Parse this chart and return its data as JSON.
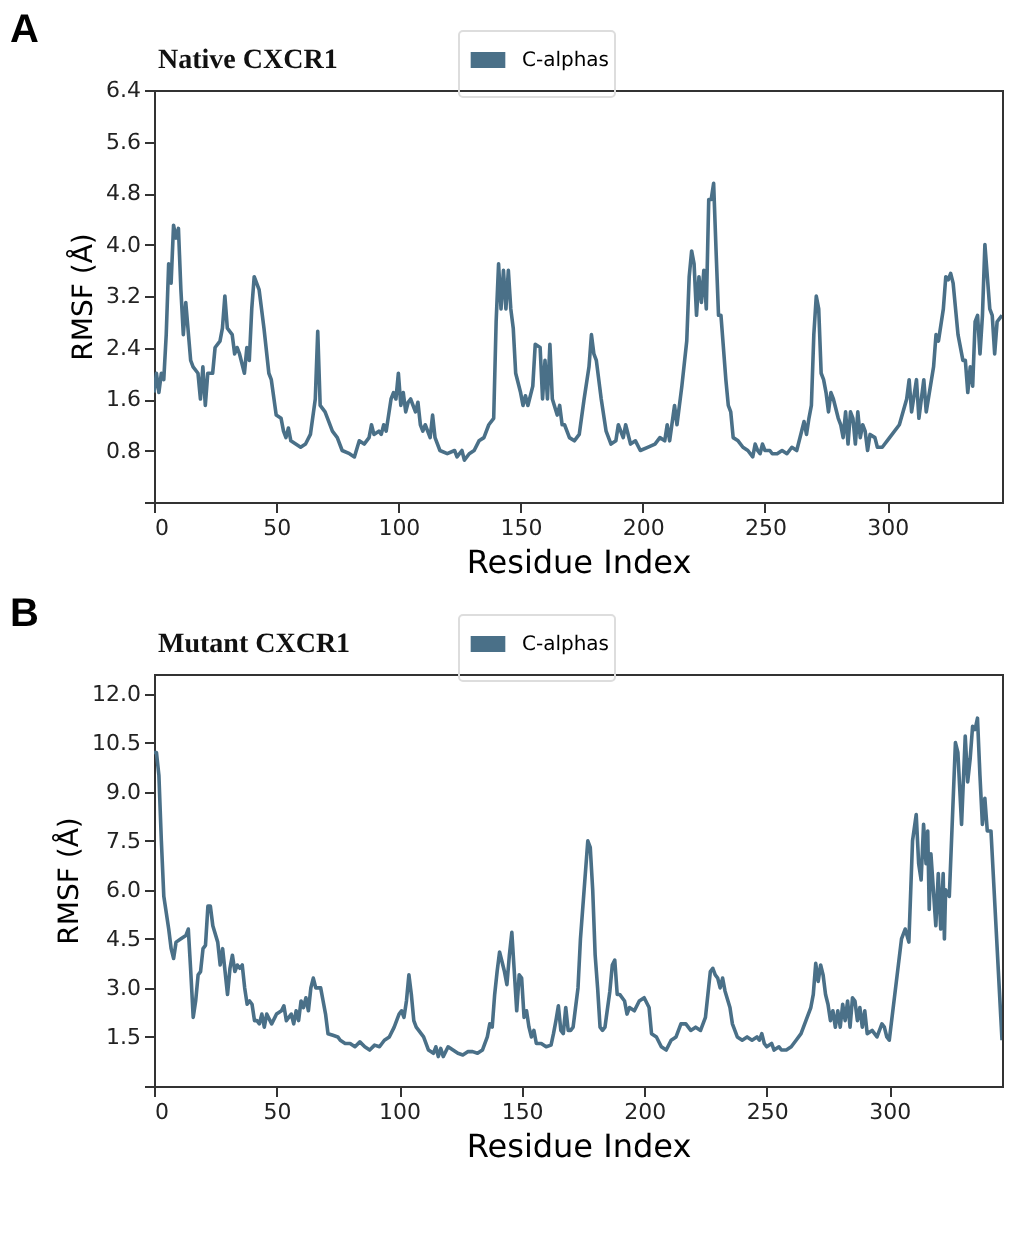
{
  "chart_data": [
    {
      "type": "line",
      "title": "Native CXCR1",
      "xlabel": "Residue Index",
      "ylabel": "RMSF (Å)",
      "annotations": [
        "A"
      ],
      "legend": "top",
      "marker": "none",
      "line_style": "solid",
      "xlim": [
        0,
        347
      ],
      "xticks": [
        0,
        50,
        100,
        150,
        200,
        250,
        300
      ],
      "ylim": [
        0,
        6.4
      ],
      "yticks": [
        {
          "value": 0,
          "label": null
        },
        0.8,
        1.6,
        2.4,
        3.2,
        {
          "value": 4,
          "label": "4.0"
        },
        4.8,
        5.6,
        6.4
      ],
      "series": [
        {
          "name": "C-alphas",
          "color": "#4a7088",
          "x": [
            0,
            1,
            2,
            3,
            4,
            5,
            6,
            7,
            8,
            9,
            10,
            11,
            12,
            13,
            15,
            16,
            18,
            19,
            20,
            21,
            22,
            24,
            25,
            27,
            28,
            29,
            30,
            32,
            33,
            34,
            35,
            37,
            38,
            39,
            40,
            41,
            43,
            45,
            47,
            48,
            50,
            52,
            53,
            54,
            55,
            56,
            58,
            60,
            62,
            64,
            66,
            67,
            68,
            70,
            73,
            75,
            77,
            80,
            82,
            84,
            86,
            88,
            89,
            90,
            92,
            93,
            94,
            95,
            97,
            98,
            99,
            100,
            101,
            102,
            103,
            104,
            105,
            107,
            108,
            109,
            110,
            111,
            113,
            114,
            115,
            117,
            120,
            123,
            124,
            126,
            127,
            129,
            131,
            133,
            135,
            137,
            139,
            140,
            141,
            142,
            143,
            144,
            145,
            146,
            147,
            148,
            150,
            151,
            152,
            153,
            155,
            156,
            158,
            159,
            160,
            161,
            162,
            163,
            165,
            166,
            167,
            168,
            170,
            172,
            174,
            176,
            178,
            179,
            180,
            181,
            183,
            185,
            187,
            189,
            190,
            192,
            193,
            195,
            197,
            199,
            202,
            205,
            207,
            209,
            210,
            211,
            213,
            214,
            216,
            218,
            219,
            220,
            221,
            222,
            223,
            224,
            225,
            226,
            227,
            228,
            229,
            230,
            231,
            232,
            234,
            235,
            236,
            237,
            239,
            241,
            243,
            245,
            246,
            247,
            248,
            249,
            250,
            252,
            253,
            255,
            257,
            259,
            261,
            263,
            265,
            266,
            267,
            268,
            269,
            270,
            271,
            272,
            273,
            274,
            275,
            276,
            277,
            278,
            280,
            281,
            282,
            283,
            284,
            285,
            286,
            287,
            288,
            289,
            290,
            291,
            292,
            293,
            295,
            296,
            298,
            301,
            305,
            308,
            309,
            310,
            312,
            313,
            315,
            316,
            319,
            320,
            321,
            323,
            324,
            325,
            326,
            327,
            329,
            331,
            332,
            333,
            334,
            335,
            336,
            337,
            338,
            339,
            340,
            342,
            343,
            344,
            345,
            347
          ],
          "values": [
            1.7,
            2.0,
            1.7,
            2.0,
            1.9,
            2.6,
            3.7,
            3.4,
            4.3,
            4.1,
            4.25,
            3.3,
            2.6,
            3.1,
            2.2,
            2.1,
            2.0,
            1.6,
            2.1,
            1.5,
            2.0,
            2.0,
            2.4,
            2.5,
            2.7,
            3.2,
            2.7,
            2.6,
            2.3,
            2.4,
            2.3,
            2.0,
            2.4,
            2.2,
            3.0,
            3.5,
            3.3,
            2.7,
            2.0,
            1.9,
            1.35,
            1.3,
            1.1,
            1.0,
            1.15,
            0.95,
            0.9,
            0.85,
            0.9,
            1.05,
            1.6,
            2.65,
            1.5,
            1.4,
            1.1,
            1.0,
            0.8,
            0.75,
            0.7,
            0.95,
            0.9,
            1.0,
            1.2,
            1.05,
            1.1,
            1.05,
            1.2,
            1.1,
            1.6,
            1.7,
            1.6,
            2.0,
            1.5,
            1.7,
            1.4,
            1.55,
            1.6,
            1.4,
            1.55,
            1.2,
            1.1,
            1.2,
            1.0,
            1.35,
            1.0,
            0.8,
            0.75,
            0.8,
            0.7,
            0.8,
            0.65,
            0.75,
            0.8,
            0.95,
            1.0,
            1.2,
            1.3,
            2.8,
            3.7,
            3.0,
            3.6,
            3.0,
            3.6,
            3.0,
            2.7,
            2.0,
            1.7,
            1.5,
            1.65,
            1.5,
            1.8,
            2.45,
            2.4,
            1.6,
            2.2,
            1.6,
            2.45,
            1.6,
            1.35,
            1.5,
            1.2,
            1.2,
            1.0,
            0.95,
            1.05,
            1.6,
            2.1,
            2.6,
            2.3,
            2.2,
            1.6,
            1.1,
            0.9,
            0.95,
            1.2,
            1.0,
            1.2,
            0.9,
            0.95,
            0.8,
            0.85,
            0.9,
            1.0,
            0.95,
            1.2,
            0.95,
            1.5,
            1.2,
            1.8,
            2.5,
            3.5,
            3.9,
            3.7,
            2.9,
            3.5,
            3.1,
            3.6,
            3.0,
            4.7,
            4.7,
            4.95,
            3.9,
            2.9,
            2.9,
            1.9,
            1.5,
            1.4,
            1.0,
            0.95,
            0.85,
            0.8,
            0.7,
            0.9,
            0.8,
            0.75,
            0.9,
            0.8,
            0.8,
            0.75,
            0.75,
            0.8,
            0.75,
            0.85,
            0.8,
            1.1,
            1.25,
            1.05,
            1.3,
            1.5,
            2.6,
            3.2,
            3.0,
            2.0,
            1.9,
            1.7,
            1.4,
            1.7,
            1.6,
            1.3,
            1.2,
            1.0,
            1.4,
            0.9,
            1.4,
            1.3,
            0.9,
            1.4,
            1.0,
            1.2,
            1.1,
            0.8,
            1.05,
            1.0,
            0.85,
            0.85,
            1.0,
            1.2,
            1.6,
            1.9,
            1.4,
            1.9,
            1.3,
            1.9,
            1.4,
            2.1,
            2.6,
            2.5,
            3.0,
            3.5,
            3.45,
            3.55,
            3.4,
            2.6,
            2.2,
            2.2,
            1.7,
            2.1,
            1.8,
            2.8,
            2.9,
            2.3,
            2.9,
            4.0,
            3.0,
            2.9,
            2.3,
            2.8,
            2.9
          ]
        }
      ]
    },
    {
      "type": "line",
      "title": "Mutant  CXCR1",
      "xlabel": "Residue Index",
      "ylabel": "RMSF (Å)",
      "annotations": [
        "B"
      ],
      "legend": "top",
      "marker": "none",
      "line_style": "solid",
      "xlim": [
        0,
        346
      ],
      "xticks": [
        0,
        50,
        100,
        150,
        200,
        250,
        300
      ],
      "ylim": [
        0,
        12.6
      ],
      "yticks": [
        {
          "value": 0,
          "label": null
        },
        1.5,
        {
          "value": 3,
          "label": "3.0"
        },
        4.5,
        {
          "value": 6,
          "label": "6.0"
        },
        7.5,
        {
          "value": 9,
          "label": "9.0"
        },
        10.5,
        {
          "value": 12,
          "label": "12.0"
        }
      ],
      "series": [
        {
          "name": "C-alphas",
          "color": "#4a7088",
          "x": [
            0,
            1,
            2,
            3,
            4,
            6,
            7,
            8,
            9,
            11,
            13,
            14,
            15,
            16,
            17,
            18,
            19,
            20,
            21,
            22,
            23,
            24,
            26,
            27,
            28,
            29,
            30,
            31,
            32,
            33,
            34,
            35,
            36,
            37,
            38,
            39,
            40,
            41,
            42,
            43,
            44,
            45,
            46,
            48,
            50,
            52,
            53,
            54,
            56,
            57,
            58,
            59,
            60,
            61,
            62,
            63,
            64,
            65,
            66,
            68,
            69,
            70,
            71,
            73,
            75,
            76,
            78,
            80,
            82,
            84,
            86,
            88,
            90,
            92,
            94,
            96,
            98,
            100,
            101,
            102,
            103,
            104,
            105,
            106,
            107,
            108,
            110,
            112,
            114,
            115,
            116,
            117,
            118,
            120,
            122,
            124,
            126,
            128,
            130,
            132,
            134,
            136,
            137,
            138,
            139,
            140,
            141,
            142,
            143,
            144,
            145,
            146,
            147,
            148,
            149,
            150,
            151,
            152,
            153,
            154,
            155,
            156,
            158,
            160,
            162,
            163,
            164,
            165,
            166,
            167,
            168,
            169,
            170,
            171,
            173,
            174,
            176,
            177,
            178,
            179,
            180,
            181,
            182,
            183,
            184,
            186,
            187,
            188,
            189,
            190,
            192,
            193,
            194,
            196,
            198,
            200,
            202,
            203,
            205,
            207,
            209,
            211,
            213,
            215,
            217,
            219,
            221,
            223,
            225,
            227,
            228,
            229,
            230,
            231,
            232,
            233,
            235,
            236,
            238,
            240,
            242,
            244,
            246,
            247,
            248,
            249,
            250,
            252,
            253,
            255,
            256,
            258,
            260,
            262,
            264,
            266,
            268,
            269,
            270,
            271,
            272,
            273,
            274,
            275,
            276,
            277,
            278,
            279,
            280,
            281,
            282,
            283,
            284,
            285,
            286,
            287,
            288,
            289,
            290,
            291,
            293,
            295,
            297,
            298,
            299,
            300,
            305,
            306.5,
            308,
            309.5,
            311,
            312,
            313,
            314,
            315,
            315.7,
            316.3,
            317,
            319,
            320,
            321,
            322,
            322.5,
            323,
            324.5,
            327,
            328,
            329.5,
            331,
            332,
            333,
            334,
            335,
            336,
            337,
            338,
            339,
            340,
            341.5,
            346
          ],
          "values": [
            10.2,
            10.2,
            9.5,
            7.5,
            5.8,
            4.8,
            4.2,
            3.9,
            4.4,
            4.5,
            4.6,
            4.8,
            3.5,
            2.1,
            2.6,
            3.4,
            3.5,
            4.2,
            4.3,
            5.5,
            5.5,
            4.9,
            4.4,
            3.7,
            4.2,
            3.5,
            2.8,
            3.6,
            4.0,
            3.5,
            3.7,
            3.6,
            3.7,
            3.0,
            2.5,
            2.6,
            2.5,
            2.0,
            2.0,
            1.9,
            2.2,
            1.8,
            2.2,
            1.9,
            2.2,
            2.3,
            2.45,
            2.0,
            2.2,
            1.9,
            2.3,
            2.0,
            2.6,
            2.4,
            2.7,
            2.3,
            3.0,
            3.3,
            3.0,
            3.0,
            2.6,
            2.2,
            1.6,
            1.55,
            1.5,
            1.4,
            1.3,
            1.3,
            1.2,
            1.35,
            1.2,
            1.1,
            1.25,
            1.2,
            1.4,
            1.5,
            1.8,
            2.2,
            2.3,
            2.1,
            2.6,
            3.4,
            2.8,
            2.0,
            1.8,
            1.7,
            1.5,
            1.1,
            1.0,
            1.2,
            0.9,
            1.15,
            0.9,
            1.2,
            1.1,
            1.0,
            0.95,
            1.05,
            1.05,
            1.0,
            1.1,
            1.5,
            1.9,
            1.8,
            2.8,
            3.5,
            4.1,
            3.8,
            3.5,
            3.1,
            4.0,
            4.7,
            3.5,
            2.3,
            3.4,
            3.3,
            2.1,
            2.3,
            1.8,
            1.5,
            1.7,
            1.3,
            1.3,
            1.2,
            1.25,
            1.6,
            2.0,
            2.45,
            1.7,
            1.6,
            2.4,
            1.7,
            1.7,
            1.8,
            3.0,
            4.5,
            6.5,
            7.5,
            7.3,
            6.0,
            4.0,
            3.0,
            1.8,
            1.7,
            1.8,
            2.9,
            3.7,
            3.85,
            2.8,
            2.8,
            2.6,
            2.2,
            2.4,
            2.3,
            2.6,
            2.7,
            2.4,
            1.6,
            1.5,
            1.2,
            1.1,
            1.4,
            1.5,
            1.9,
            1.9,
            1.7,
            1.8,
            1.7,
            2.1,
            3.5,
            3.6,
            3.4,
            3.3,
            3.0,
            3.3,
            2.9,
            2.4,
            1.9,
            1.5,
            1.4,
            1.5,
            1.4,
            1.5,
            1.4,
            1.6,
            1.3,
            1.2,
            1.3,
            1.1,
            1.2,
            1.1,
            1.1,
            1.2,
            1.4,
            1.6,
            2.0,
            2.4,
            2.8,
            3.75,
            3.2,
            3.7,
            3.4,
            2.8,
            2.5,
            2.0,
            2.3,
            1.8,
            2.3,
            1.8,
            2.5,
            2.0,
            2.6,
            1.8,
            2.7,
            2.6,
            2.0,
            2.4,
            1.8,
            2.3,
            1.6,
            1.7,
            1.5,
            1.9,
            1.8,
            1.5,
            1.4,
            4.5,
            4.8,
            4.4,
            7.5,
            8.3,
            6.8,
            6.3,
            8.0,
            6.8,
            7.8,
            5.4,
            7.1,
            4.9,
            6.5,
            4.8,
            6.5,
            4.5,
            6.0,
            5.8,
            10.5,
            10.2,
            8.0,
            10.7,
            9.3,
            10.0,
            11.0,
            10.9,
            11.25,
            9.5,
            8.0,
            8.8,
            7.8,
            7.8,
            1.4
          ]
        }
      ]
    }
  ]
}
